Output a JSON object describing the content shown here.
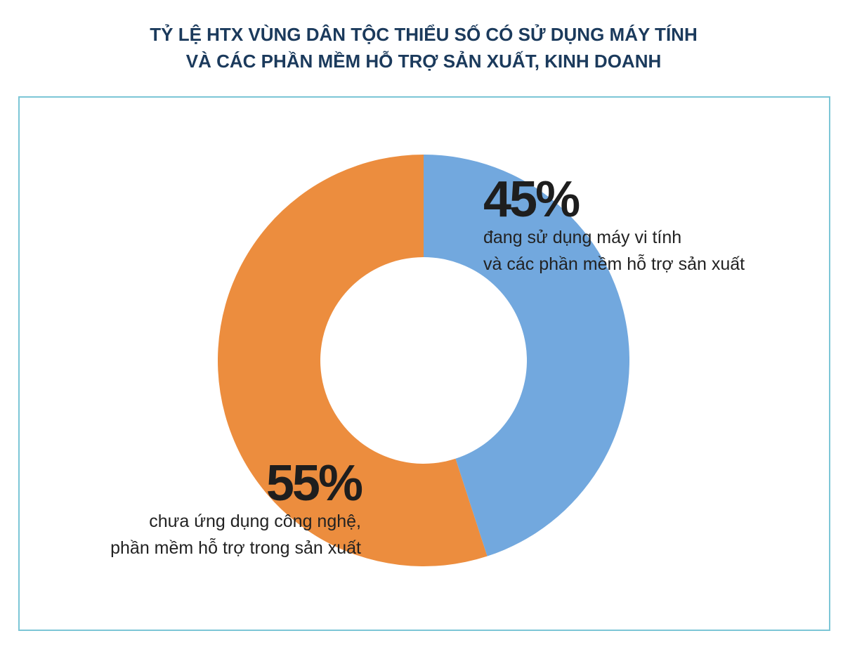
{
  "chart_data": {
    "type": "donut",
    "title": [
      "TỶ LỆ HTX VÙNG DÂN TỘC THIỂU SỐ CÓ SỬ DỤNG MÁY TÍNH",
      "VÀ CÁC PHẦN MỀM HỖ TRỢ SẢN XUẤT, KINH DOANH"
    ],
    "categories": [
      [
        "đang sử dụng máy vi tính",
        "và các phần mềm hỗ trợ sản xuất"
      ],
      [
        "chưa ứng dụng công nghệ,",
        "phần mềm hỗ trợ trong sản xuất"
      ]
    ],
    "values": [
      45,
      55
    ],
    "value_labels": [
      "45%",
      "55%"
    ],
    "colors": [
      "#72a8de",
      "#ec8d3e"
    ]
  }
}
